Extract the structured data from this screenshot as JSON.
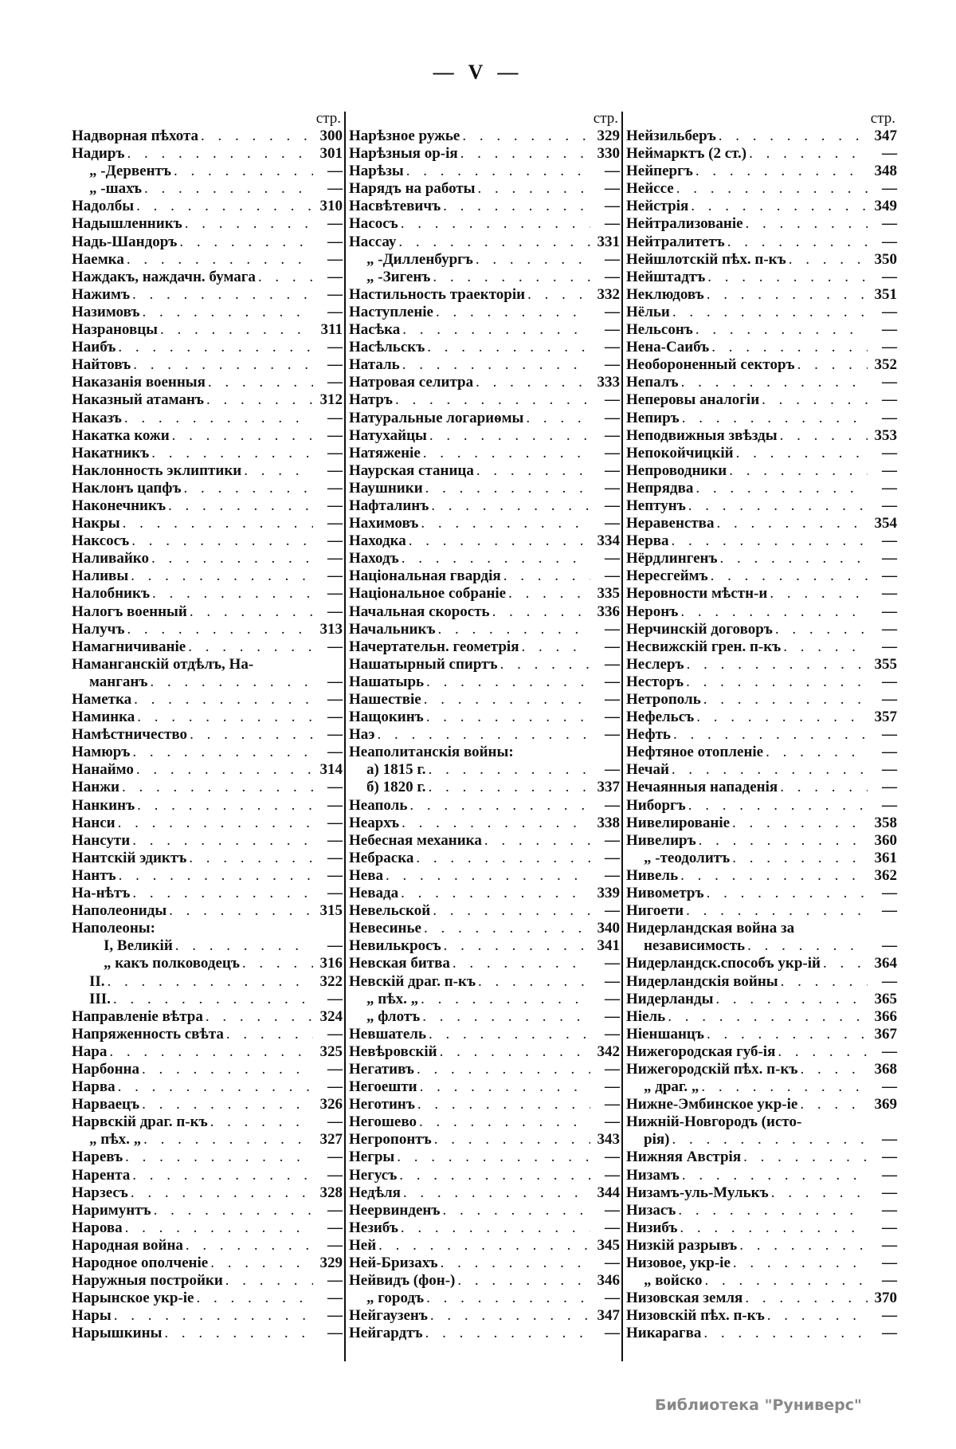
{
  "page_number": "— V —",
  "footer": "Библиотека \"Руниверс\"",
  "columns": [
    {
      "header": "стр.",
      "rows": [
        {
          "t": "Надворная пѣхота",
          "p": "300"
        },
        {
          "t": "Надиръ",
          "p": "301"
        },
        {
          "t": "„ -Дервентъ",
          "p": "—",
          "l": 1
        },
        {
          "t": "„ -шахъ",
          "p": "—",
          "l": 1
        },
        {
          "t": "Надолбы",
          "p": "310"
        },
        {
          "t": "Надышленникъ",
          "p": "—"
        },
        {
          "t": "Надь-Шандоръ",
          "p": "—"
        },
        {
          "t": "Наемка",
          "p": "—"
        },
        {
          "t": "Наждакъ, наждачн. бумага",
          "p": "—"
        },
        {
          "t": "Нажимъ",
          "p": "—"
        },
        {
          "t": "Назимовъ",
          "p": "—"
        },
        {
          "t": "Назрановцы",
          "p": "311"
        },
        {
          "t": "Наибъ",
          "p": "—"
        },
        {
          "t": "Найтовъ",
          "p": "—"
        },
        {
          "t": "Наказанія военныя",
          "p": "—"
        },
        {
          "t": "Наказный атаманъ",
          "p": "312"
        },
        {
          "t": "Наказъ",
          "p": "—"
        },
        {
          "t": "Накатка кожи",
          "p": "—"
        },
        {
          "t": "Накатникъ",
          "p": "—"
        },
        {
          "t": "Наклонность эклиптики",
          "p": "—"
        },
        {
          "t": "Наклонъ цапфъ",
          "p": "—"
        },
        {
          "t": "Наконечникъ",
          "p": "—"
        },
        {
          "t": "Накры",
          "p": "—"
        },
        {
          "t": "Наксосъ",
          "p": "—"
        },
        {
          "t": "Наливайко",
          "p": "—"
        },
        {
          "t": "Наливы",
          "p": "—"
        },
        {
          "t": "Налобникъ",
          "p": "—"
        },
        {
          "t": "Налогъ военный",
          "p": "—"
        },
        {
          "t": "Налучъ",
          "p": "313"
        },
        {
          "t": "Намагничиваніе",
          "p": "—"
        },
        {
          "t": "Наманганскій отдѣлъ, На-",
          "p": ""
        },
        {
          "t": "манганъ",
          "p": "—",
          "l": 1
        },
        {
          "t": "Наметка",
          "p": "—"
        },
        {
          "t": "Наминка",
          "p": "—"
        },
        {
          "t": "Намѣстничество",
          "p": "—"
        },
        {
          "t": "Намюръ",
          "p": "—"
        },
        {
          "t": "Нанаймо",
          "p": "314"
        },
        {
          "t": "Нанжи",
          "p": "—"
        },
        {
          "t": "Нанкинъ",
          "p": "—"
        },
        {
          "t": "Нанси",
          "p": "—"
        },
        {
          "t": "Нансути",
          "p": "—"
        },
        {
          "t": "Нантскій эдиктъ",
          "p": "—"
        },
        {
          "t": "Нантъ",
          "p": "—"
        },
        {
          "t": "На-нѣтъ",
          "p": "—"
        },
        {
          "t": "Наполеониды",
          "p": "315"
        },
        {
          "t": "Наполеоны:",
          "p": ""
        },
        {
          "t": "I, Великій",
          "p": "—",
          "l": 2
        },
        {
          "t": "„ какъ полководецъ",
          "p": "316",
          "l": 2
        },
        {
          "t": "II.",
          "p": "322",
          "l": 1
        },
        {
          "t": "III.",
          "p": "—",
          "l": 1
        },
        {
          "t": "Направленіе вѣтра",
          "p": "324"
        },
        {
          "t": "Напряженность свѣта",
          "p": "—"
        },
        {
          "t": "Нара",
          "p": "325"
        },
        {
          "t": "Нарбонна",
          "p": "—"
        },
        {
          "t": "Нарва",
          "p": "—"
        },
        {
          "t": "Нарваецъ",
          "p": "326"
        },
        {
          "t": "Нарвскій драг. п-къ",
          "p": "—"
        },
        {
          "t": "„      пѣх.   „",
          "p": "327",
          "l": 1
        },
        {
          "t": "Наревъ",
          "p": "—"
        },
        {
          "t": "Нарента",
          "p": "—"
        },
        {
          "t": "Нарзесъ",
          "p": "328"
        },
        {
          "t": "Наримунтъ",
          "p": "—"
        },
        {
          "t": "Нарова",
          "p": "—"
        },
        {
          "t": "Народная война",
          "p": "—"
        },
        {
          "t": "Народное ополченіе",
          "p": "329"
        },
        {
          "t": "Наружныя постройки",
          "p": "—"
        },
        {
          "t": "Нарынское укр-іе",
          "p": "—"
        },
        {
          "t": "Нары",
          "p": "—"
        },
        {
          "t": "Нарышкины",
          "p": "—"
        }
      ]
    },
    {
      "header": "стр.",
      "rows": [
        {
          "t": "Нарѣзное ружье",
          "p": "329"
        },
        {
          "t": "Нарѣзныя ор-ія",
          "p": "330"
        },
        {
          "t": "Нарѣзы",
          "p": "—"
        },
        {
          "t": "Нарядъ на работы",
          "p": "—"
        },
        {
          "t": "Насвѣтевичъ",
          "p": "—"
        },
        {
          "t": "Насосъ",
          "p": "—"
        },
        {
          "t": "Нассау",
          "p": "331"
        },
        {
          "t": "„ -Дилленбургъ",
          "p": "—",
          "l": 1
        },
        {
          "t": "„ -Зигенъ",
          "p": "—",
          "l": 1
        },
        {
          "t": "Настильность траекторіи",
          "p": "332"
        },
        {
          "t": "Наступленіе",
          "p": "—"
        },
        {
          "t": "Насѣка",
          "p": "—"
        },
        {
          "t": "Насѣльскъ",
          "p": "—"
        },
        {
          "t": "Наталь",
          "p": "—"
        },
        {
          "t": "Натровая селитра",
          "p": "333"
        },
        {
          "t": "Натръ",
          "p": "—"
        },
        {
          "t": "Натуральные логариѳмы",
          "p": "—"
        },
        {
          "t": "Натухайцы",
          "p": "—"
        },
        {
          "t": "Натяженіе",
          "p": "—"
        },
        {
          "t": "Наурская станица",
          "p": "—"
        },
        {
          "t": "Наушники",
          "p": "—"
        },
        {
          "t": "Нафталинъ",
          "p": "—"
        },
        {
          "t": "Нахимовъ",
          "p": "—"
        },
        {
          "t": "Находка",
          "p": "334"
        },
        {
          "t": "Находъ",
          "p": "—"
        },
        {
          "t": "Національная гвардія",
          "p": "—"
        },
        {
          "t": "Національное собраніе",
          "p": "335"
        },
        {
          "t": "Начальная скорость",
          "p": "336"
        },
        {
          "t": "Начальникъ",
          "p": "—"
        },
        {
          "t": "Начертательн. геометрія",
          "p": "—"
        },
        {
          "t": "Нашатырный спиртъ",
          "p": "—"
        },
        {
          "t": "Нашатырь",
          "p": "—"
        },
        {
          "t": "Нашествіе",
          "p": "—"
        },
        {
          "t": "Нащокинъ",
          "p": "—"
        },
        {
          "t": "Наэ",
          "p": "—"
        },
        {
          "t": "Неаполитанскія войны:",
          "p": ""
        },
        {
          "t": "а) 1815 г.",
          "p": "—",
          "l": 1
        },
        {
          "t": "б) 1820 г.",
          "p": "337",
          "l": 1
        },
        {
          "t": "Неаполь",
          "p": "—"
        },
        {
          "t": "Неархъ",
          "p": "338"
        },
        {
          "t": "Небесная механика",
          "p": "—"
        },
        {
          "t": "Небраска",
          "p": "—"
        },
        {
          "t": "Нева",
          "p": "—"
        },
        {
          "t": "Невада",
          "p": "339"
        },
        {
          "t": "Невельской",
          "p": "—"
        },
        {
          "t": "Невесинье",
          "p": "340"
        },
        {
          "t": "Невилькросъ",
          "p": "341"
        },
        {
          "t": "Невская битва",
          "p": "—"
        },
        {
          "t": "Невскій драг. п-къ",
          "p": "—"
        },
        {
          "t": "„      пѣх.   „",
          "p": "—",
          "l": 1
        },
        {
          "t": "„      флотъ",
          "p": "—",
          "l": 1
        },
        {
          "t": "Невшатель",
          "p": "—"
        },
        {
          "t": "Невѣровскій",
          "p": "342"
        },
        {
          "t": "Негативъ",
          "p": "—"
        },
        {
          "t": "Негоешти",
          "p": "—"
        },
        {
          "t": "Неготинъ",
          "p": "—"
        },
        {
          "t": "Негошево",
          "p": "—"
        },
        {
          "t": "Негропонтъ",
          "p": "343"
        },
        {
          "t": "Негры",
          "p": "—"
        },
        {
          "t": "Негусъ",
          "p": "—"
        },
        {
          "t": "Недѣля",
          "p": "344"
        },
        {
          "t": "Неервинденъ",
          "p": "—"
        },
        {
          "t": "Незибъ",
          "p": "—"
        },
        {
          "t": "Ней",
          "p": "345"
        },
        {
          "t": "Ней-Бризахъ",
          "p": "—"
        },
        {
          "t": "Нейвидъ (фон-)",
          "p": "346"
        },
        {
          "t": "„        городъ",
          "p": "—",
          "l": 1
        },
        {
          "t": "Нейгаузенъ",
          "p": "347"
        },
        {
          "t": "Нейгардтъ",
          "p": "—"
        }
      ]
    },
    {
      "header": "стр.",
      "rows": [
        {
          "t": "Нейзильберъ",
          "p": "347"
        },
        {
          "t": "Неймарктъ (2 ст.)",
          "p": "—"
        },
        {
          "t": "Нейпергъ",
          "p": "348"
        },
        {
          "t": "Нейссе",
          "p": "—"
        },
        {
          "t": "Нейстрія",
          "p": "349"
        },
        {
          "t": "Нейтрализованіе",
          "p": "—"
        },
        {
          "t": "Нейтралитетъ",
          "p": "—"
        },
        {
          "t": "Нейшлотскій пѣх. п-къ",
          "p": "350"
        },
        {
          "t": "Нейштадтъ",
          "p": "—"
        },
        {
          "t": "Неклюдовъ",
          "p": "351"
        },
        {
          "t": "Нёльи",
          "p": "—"
        },
        {
          "t": "Нельсонъ",
          "p": "—"
        },
        {
          "t": "Нена-Саибъ",
          "p": "—"
        },
        {
          "t": "Необороненный секторъ",
          "p": "352"
        },
        {
          "t": "Непалъ",
          "p": "—"
        },
        {
          "t": "Неперовы аналогіи",
          "p": "—"
        },
        {
          "t": "Непиръ",
          "p": "—"
        },
        {
          "t": "Неподвижныя звѣзды",
          "p": "353"
        },
        {
          "t": "Непокойчицкій",
          "p": "—"
        },
        {
          "t": "Непроводники",
          "p": "—"
        },
        {
          "t": "Непрядва",
          "p": "—"
        },
        {
          "t": "Нептунъ",
          "p": "—"
        },
        {
          "t": "Неравенства",
          "p": "354"
        },
        {
          "t": "Нерва",
          "p": "—"
        },
        {
          "t": "Нёрдлингенъ",
          "p": "—"
        },
        {
          "t": "Нересгеймъ",
          "p": "—"
        },
        {
          "t": "Неровности мѣстн-и",
          "p": "—"
        },
        {
          "t": "Неронъ",
          "p": "—"
        },
        {
          "t": "Нерчинскій договоръ",
          "p": "—"
        },
        {
          "t": "Несвижскій грен. п-къ",
          "p": "—"
        },
        {
          "t": "Неслеръ",
          "p": "355"
        },
        {
          "t": "Несторъ",
          "p": "—"
        },
        {
          "t": "Нетрополь",
          "p": "—"
        },
        {
          "t": "Нефельсъ",
          "p": "357"
        },
        {
          "t": "Нефть",
          "p": "—"
        },
        {
          "t": "Нефтяное отопленіе",
          "p": "—"
        },
        {
          "t": "Нечай",
          "p": "—"
        },
        {
          "t": "Нечаянныя нападенія",
          "p": "—"
        },
        {
          "t": "Ниборгъ",
          "p": "—"
        },
        {
          "t": "Нивелированіе",
          "p": "358"
        },
        {
          "t": "Нивелиръ",
          "p": "360"
        },
        {
          "t": "„    -теодолитъ",
          "p": "361",
          "l": 1
        },
        {
          "t": "Нивель",
          "p": "362"
        },
        {
          "t": "Нивометръ",
          "p": "—"
        },
        {
          "t": "Нигоети",
          "p": "—"
        },
        {
          "t": "Нидерландская война за",
          "p": ""
        },
        {
          "t": "независимость",
          "p": "—",
          "l": 1
        },
        {
          "t": "Нидерландск.способъ укр-ій",
          "p": "364"
        },
        {
          "t": "Нидерландскія войны",
          "p": "—"
        },
        {
          "t": "Нидерланды",
          "p": "365"
        },
        {
          "t": "Ніель",
          "p": "366"
        },
        {
          "t": "Ніеншанцъ",
          "p": "367"
        },
        {
          "t": "Нижегородская губ-ія",
          "p": "—"
        },
        {
          "t": "Нижегородскій пѣх. п-къ",
          "p": "368"
        },
        {
          "t": "„            драг. „",
          "p": "—",
          "l": 1
        },
        {
          "t": "Нижне-Эмбинское укр-іе",
          "p": "369"
        },
        {
          "t": "Нижній-Новгородъ (исто-",
          "p": ""
        },
        {
          "t": "рія)",
          "p": "—",
          "l": 1
        },
        {
          "t": "Нижняя Австрія",
          "p": "—"
        },
        {
          "t": "Низамъ",
          "p": "—"
        },
        {
          "t": "Низамъ-уль-Мулькъ",
          "p": "—"
        },
        {
          "t": "Низасъ",
          "p": "—"
        },
        {
          "t": "Низибъ",
          "p": "—"
        },
        {
          "t": "Низкій разрывъ",
          "p": "—"
        },
        {
          "t": "Низовое, укр-іе",
          "p": "—"
        },
        {
          "t": "„      войско",
          "p": "—",
          "l": 1
        },
        {
          "t": "Низовская земля",
          "p": "370"
        },
        {
          "t": "Низовскій пѣх. п-къ",
          "p": "—"
        },
        {
          "t": "Никарагва",
          "p": "—"
        }
      ]
    }
  ]
}
